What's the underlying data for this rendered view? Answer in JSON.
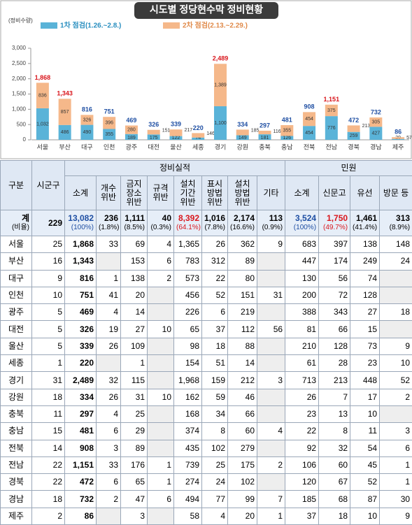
{
  "chart_data": {
    "type": "stacked_bar",
    "title": "시도별 정당현수막 정비현황",
    "y_label": "(정비수량)",
    "categories": [
      "서울",
      "부산",
      "대구",
      "인천",
      "광주",
      "대전",
      "울산",
      "세종",
      "경기",
      "강원",
      "충북",
      "충남",
      "전북",
      "전남",
      "경북",
      "경남",
      "제주"
    ],
    "series": [
      {
        "name": "1차 점검(1.26.~2.8.)",
        "color": "#5ab3d8",
        "values": [
          1032,
          486,
          490,
          355,
          189,
          175,
          122,
          74,
          1100,
          149,
          181,
          126,
          454,
          776,
          259,
          427,
          29
        ],
        "value_labels": [
          "1,032",
          "486",
          "490",
          "355",
          "189",
          "175",
          "122",
          "74",
          "1,100",
          "149",
          "181",
          "126",
          "454",
          "776",
          "259",
          "427",
          "29"
        ]
      },
      {
        "name": "2차 점검(2.13.~2.29.)",
        "color": "#f5b88a",
        "values": [
          836,
          857,
          326,
          396,
          280,
          151,
          217,
          146,
          1389,
          185,
          116,
          355,
          454,
          375,
          213,
          305,
          57
        ],
        "value_labels": [
          "836",
          "857",
          "326",
          "396",
          "280",
          "151",
          "217",
          "146",
          "1,389",
          "185",
          "116",
          "355",
          "454",
          "375",
          "213",
          "305",
          "57"
        ]
      }
    ],
    "total_labels": [
      "1,868",
      "1,343",
      "816",
      "751",
      "469",
      "326",
      "339",
      "220",
      "2,489",
      "334",
      "297",
      "481",
      "908",
      "1,151",
      "472",
      "732",
      "86"
    ],
    "ylim": [
      0,
      3000
    ],
    "yticks": [
      0,
      500,
      {
        "value": 1000,
        "label": "1,000"
      },
      {
        "value": 1500,
        "label": "1,500"
      },
      {
        "value": 2000,
        "label": "2,000"
      },
      {
        "value": 2500,
        "label": "2,500"
      },
      {
        "value": 3000,
        "label": "3,000"
      }
    ],
    "grid": false
  },
  "table": {
    "header": {
      "region": "구분",
      "sigungu": "시군구",
      "group1": "정비실적",
      "group2": "민원",
      "columns": [
        "소계",
        "개수 위반",
        "금지 장소 위반",
        "규격 위반",
        "설치 기간 위반",
        "표시 방법 위반",
        "설치 방법 위반",
        "기타",
        "소계",
        "신문고",
        "유선",
        "방문 등"
      ]
    },
    "total": {
      "label": "계",
      "sublabel": "(비율)",
      "sigungu": "229",
      "cells": [
        {
          "value": "13,082",
          "ratio": "(100%)"
        },
        {
          "value": "236",
          "ratio": "(1.8%)"
        },
        {
          "value": "1,111",
          "ratio": "(8.5%)"
        },
        {
          "value": "40",
          "ratio": "(0.3%)"
        },
        {
          "value": "8,392",
          "ratio": "(64.1%)"
        },
        {
          "value": "1,016",
          "ratio": "(7.8%)"
        },
        {
          "value": "2,174",
          "ratio": "(16.6%)"
        },
        {
          "value": "113",
          "ratio": "(0.9%)"
        },
        {
          "value": "3,524",
          "ratio": "(100%)"
        },
        {
          "value": "1,750",
          "ratio": "(49.7%)"
        },
        {
          "value": "1,461",
          "ratio": "(41.4%)"
        },
        {
          "value": "313",
          "ratio": "(8.9%)"
        }
      ]
    },
    "rows": [
      [
        "서울",
        "25",
        "1,868",
        "33",
        "69",
        "4",
        "1,365",
        "26",
        "362",
        "9",
        "683",
        "397",
        "138",
        "148"
      ],
      [
        "부산",
        "16",
        "1,343",
        null,
        "153",
        "6",
        "783",
        "312",
        "89",
        null,
        "447",
        "174",
        "249",
        "24"
      ],
      [
        "대구",
        "9",
        "816",
        "1",
        "138",
        "2",
        "573",
        "22",
        "80",
        null,
        "130",
        "56",
        "74",
        null
      ],
      [
        "인천",
        "10",
        "751",
        "41",
        "20",
        null,
        "456",
        "52",
        "151",
        "31",
        "200",
        "72",
        "128",
        null
      ],
      [
        "광주",
        "5",
        "469",
        "4",
        "14",
        null,
        "226",
        "6",
        "219",
        null,
        "388",
        "343",
        "27",
        "18"
      ],
      [
        "대전",
        "5",
        "326",
        "19",
        "27",
        "10",
        "65",
        "37",
        "112",
        "56",
        "81",
        "66",
        "15",
        null
      ],
      [
        "울산",
        "5",
        "339",
        "26",
        "109",
        null,
        "98",
        "18",
        "88",
        null,
        "210",
        "128",
        "73",
        "9"
      ],
      [
        "세종",
        "1",
        "220",
        null,
        "1",
        null,
        "154",
        "51",
        "14",
        null,
        "61",
        "28",
        "23",
        "10"
      ],
      [
        "경기",
        "31",
        "2,489",
        "32",
        "115",
        null,
        "1,968",
        "159",
        "212",
        "3",
        "713",
        "213",
        "448",
        "52"
      ],
      [
        "강원",
        "18",
        "334",
        "26",
        "31",
        "10",
        "162",
        "59",
        "46",
        null,
        "26",
        "7",
        "17",
        "2"
      ],
      [
        "충북",
        "11",
        "297",
        "4",
        "25",
        null,
        "168",
        "34",
        "66",
        null,
        "23",
        "13",
        "10",
        null
      ],
      [
        "충남",
        "15",
        "481",
        "6",
        "29",
        null,
        "374",
        "8",
        "60",
        "4",
        "22",
        "8",
        "11",
        "3"
      ],
      [
        "전북",
        "14",
        "908",
        "3",
        "89",
        null,
        "435",
        "102",
        "279",
        null,
        "92",
        "32",
        "54",
        "6"
      ],
      [
        "전남",
        "22",
        "1,151",
        "33",
        "176",
        "1",
        "739",
        "25",
        "175",
        "2",
        "106",
        "60",
        "45",
        "1"
      ],
      [
        "경북",
        "22",
        "472",
        "6",
        "65",
        "1",
        "274",
        "24",
        "102",
        null,
        "120",
        "67",
        "52",
        "1"
      ],
      [
        "경남",
        "18",
        "732",
        "2",
        "47",
        "6",
        "494",
        "77",
        "99",
        "7",
        "185",
        "68",
        "87",
        "30"
      ],
      [
        "제주",
        "2",
        "86",
        null,
        "3",
        null,
        "58",
        "4",
        "20",
        "1",
        "37",
        "18",
        "10",
        "9"
      ]
    ]
  }
}
